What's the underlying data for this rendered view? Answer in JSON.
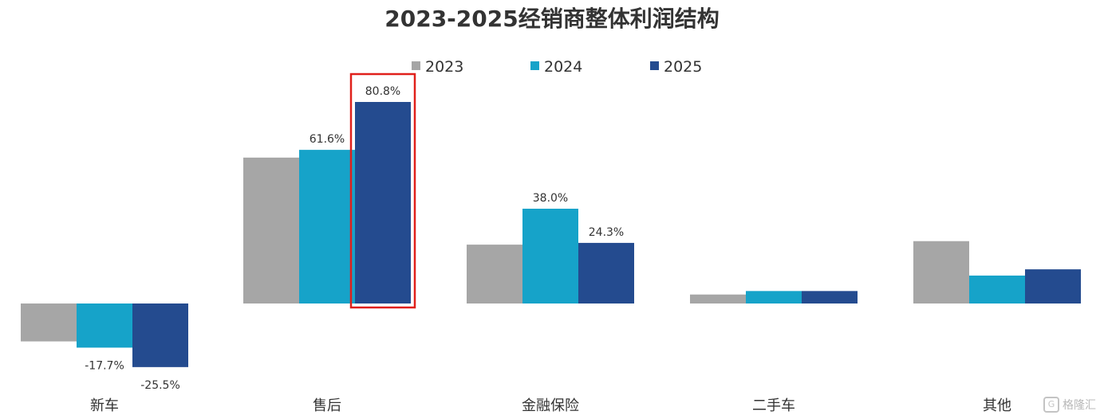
{
  "chart_data": {
    "type": "bar",
    "title": "2023-2025经销商整体利润结构",
    "categories": [
      "新车",
      "售后",
      "金融保险",
      "二手车",
      "其他"
    ],
    "series": [
      {
        "name": "2023",
        "color": "#a6a6a6",
        "values": [
          -15.2,
          58.5,
          23.6,
          3.6,
          25.0
        ]
      },
      {
        "name": "2024",
        "color": "#16a3c9",
        "values": [
          -17.7,
          61.6,
          38.0,
          5.0,
          11.2
        ]
      },
      {
        "name": "2025",
        "color": "#244b8f",
        "values": [
          -25.5,
          80.8,
          24.3,
          5.0,
          13.7
        ]
      }
    ],
    "data_labels": [
      {
        "series": 1,
        "category": 0,
        "text": "-17.7%"
      },
      {
        "series": 2,
        "category": 0,
        "text": "-25.5%"
      },
      {
        "series": 1,
        "category": 1,
        "text": "61.6%"
      },
      {
        "series": 2,
        "category": 1,
        "text": "80.8%"
      },
      {
        "series": 1,
        "category": 2,
        "text": "38.0%"
      },
      {
        "series": 2,
        "category": 2,
        "text": "24.3%"
      }
    ],
    "highlight": {
      "series": 2,
      "category": 1,
      "color": "#e0201b"
    },
    "ylim": [
      -30,
      90
    ],
    "legend_position": "top-center",
    "grid": false
  },
  "watermark": {
    "icon": "G",
    "text": "格隆汇"
  }
}
